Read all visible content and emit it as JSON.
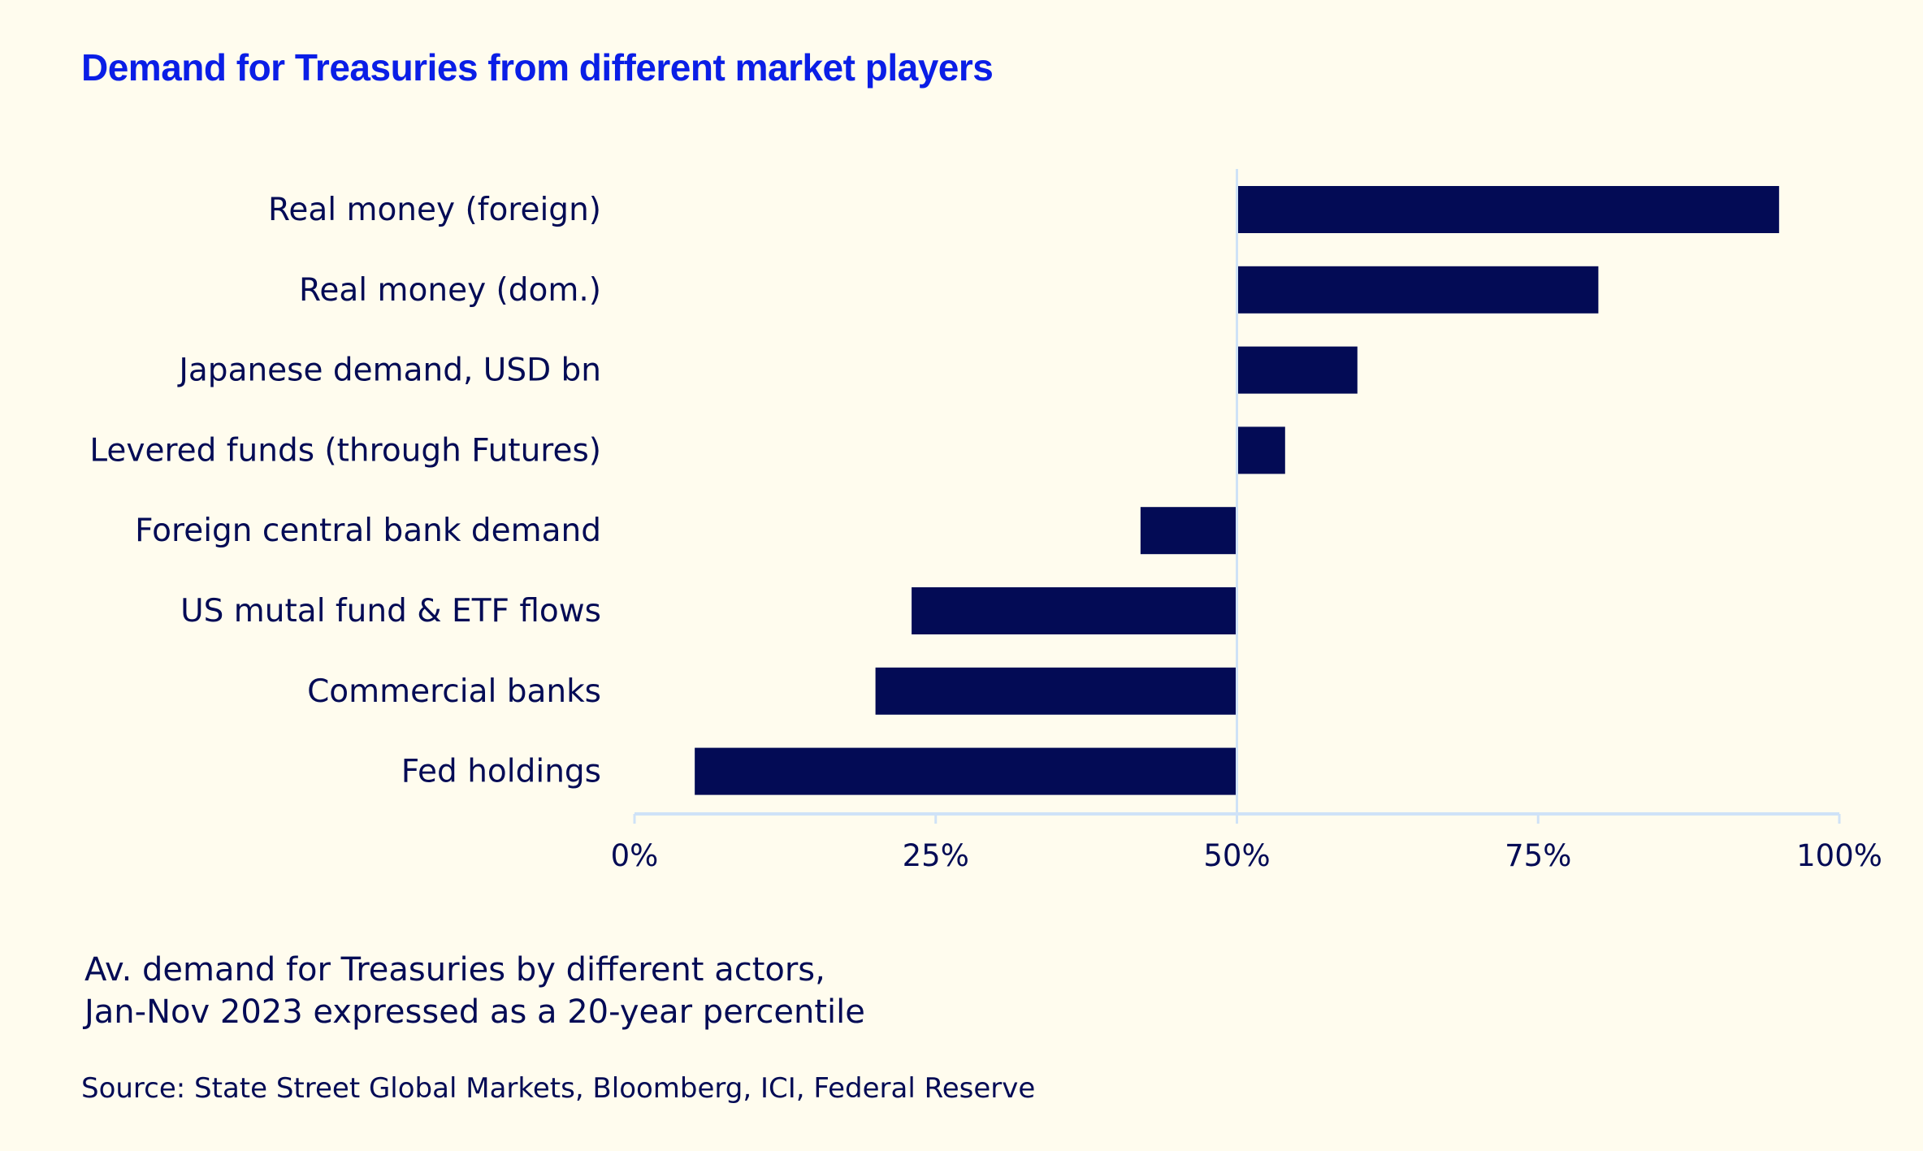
{
  "chart_data": {
    "type": "bar",
    "orientation": "horizontal",
    "title": "Demand for Treasuries from different market players",
    "baseline": 50,
    "categories": [
      "Real money (foreign)",
      "Real money (dom.)",
      "Japanese demand, USD bn",
      "Levered funds (through Futures)",
      "Foreign central bank demand",
      "US mutal fund & ETF flows",
      "Commercial banks",
      "Fed holdings"
    ],
    "values": [
      95,
      80,
      60,
      54,
      42,
      23,
      20,
      5
    ],
    "xlim": [
      0,
      100
    ],
    "xticks": [
      0,
      25,
      50,
      75,
      100
    ],
    "xtick_labels": [
      "0%",
      "25%",
      "50%",
      "75%",
      "100%"
    ],
    "xlabel": "",
    "ylabel": "",
    "grid": false,
    "legend": "none",
    "bar_color": "#030b55",
    "axis_color": "#cfe2f7"
  },
  "note_lines": [
    "Av. demand for Treasuries by different actors,",
    "Jan-Nov 2023 expressed as a 20-year percentile"
  ],
  "source": "Source: State Street Global Markets, Bloomberg, ICI, Federal Reserve",
  "colors": {
    "background": "#fffcee",
    "title": "#0a1ee6",
    "text": "#030b55"
  }
}
